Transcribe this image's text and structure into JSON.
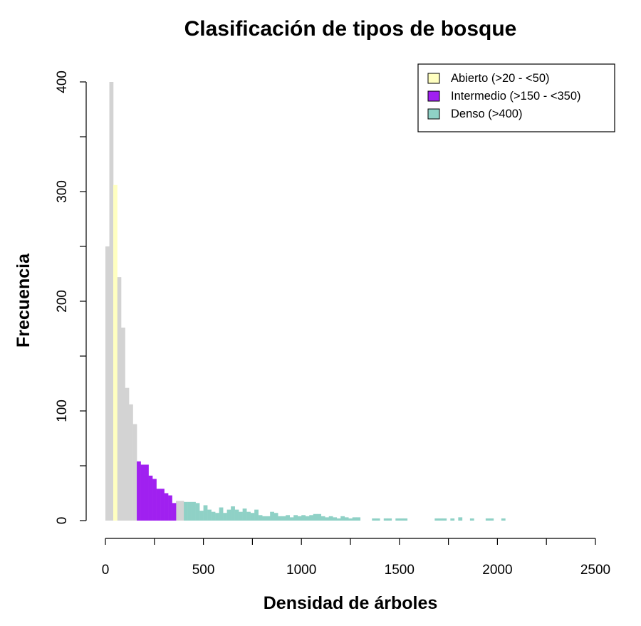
{
  "chart_data": {
    "type": "bar",
    "title": "Clasificación de tipos de bosque",
    "xlabel": "Densidad de árboles",
    "ylabel": "Frecuencia",
    "xlim": [
      0,
      2500
    ],
    "ylim": [
      0,
      400
    ],
    "bin_width": 20,
    "x_ticks": [
      "0",
      "500",
      "1000",
      "1500",
      "2000",
      "2500"
    ],
    "x_minor_ticks": [
      250,
      750,
      1250,
      1750,
      2250
    ],
    "y_ticks": [
      "0",
      "100",
      "200",
      "300",
      "400"
    ],
    "y_minor_ticks": [
      50,
      150,
      250,
      350
    ],
    "grid": false,
    "legend_position": "top-right",
    "legend": [
      {
        "label": "Abierto (>20 - <50)",
        "color": "#FFFFC0"
      },
      {
        "label": "Intermedio (>150 - <350)",
        "color": "#A020F0"
      },
      {
        "label": "Denso (>400)",
        "color": "#8FD1C6"
      }
    ],
    "colors": {
      "other": "#D3D3D3",
      "abierto": "#FFFFC0",
      "intermedio": "#A020F0",
      "denso": "#8FD1C6"
    },
    "series": [
      {
        "name": "Abierto (>20 - <50)",
        "class": "abierto",
        "x": [
          40
        ],
        "values": [
          306
        ]
      },
      {
        "name": "Intermedio (>150 - <350)",
        "class": "intermedio",
        "x": [
          160,
          180,
          200,
          220,
          240,
          260,
          280,
          300,
          320,
          340
        ],
        "values": [
          54,
          51,
          51,
          41,
          38,
          29,
          29,
          25,
          23,
          16
        ]
      },
      {
        "name": "Denso (>400)",
        "class": "denso",
        "x": [
          400,
          420,
          440,
          460,
          480,
          500,
          520,
          540,
          560,
          580,
          600,
          620,
          640,
          660,
          680,
          700,
          720,
          740,
          760,
          780,
          800,
          820,
          840,
          860,
          880,
          900,
          920,
          940,
          960,
          980,
          1000,
          1020,
          1040,
          1060,
          1080,
          1100,
          1120,
          1140,
          1160,
          1180,
          1200,
          1220,
          1240,
          1260,
          1280,
          1360,
          1380,
          1420,
          1440,
          1480,
          1500,
          1520,
          1680,
          1700,
          1720,
          1760,
          1800,
          1860,
          1940,
          1960,
          2020
        ],
        "values": [
          17,
          17,
          17,
          16,
          9,
          14,
          10,
          8,
          7,
          12,
          7,
          10,
          13,
          10,
          8,
          11,
          8,
          7,
          10,
          5,
          4,
          4,
          8,
          7,
          4,
          4,
          5,
          3,
          5,
          4,
          5,
          4,
          5,
          6,
          6,
          4,
          3,
          4,
          3,
          2,
          4,
          3,
          2,
          3,
          3,
          2,
          2,
          2,
          2,
          2,
          2,
          2,
          2,
          2,
          2,
          2,
          3,
          2,
          2,
          2,
          2
        ]
      }
    ],
    "other_bins": {
      "x": [
        0,
        20,
        60,
        80,
        100,
        120,
        140,
        360,
        380
      ],
      "values": [
        250,
        400,
        222,
        176,
        121,
        106,
        88,
        18,
        18
      ]
    }
  }
}
